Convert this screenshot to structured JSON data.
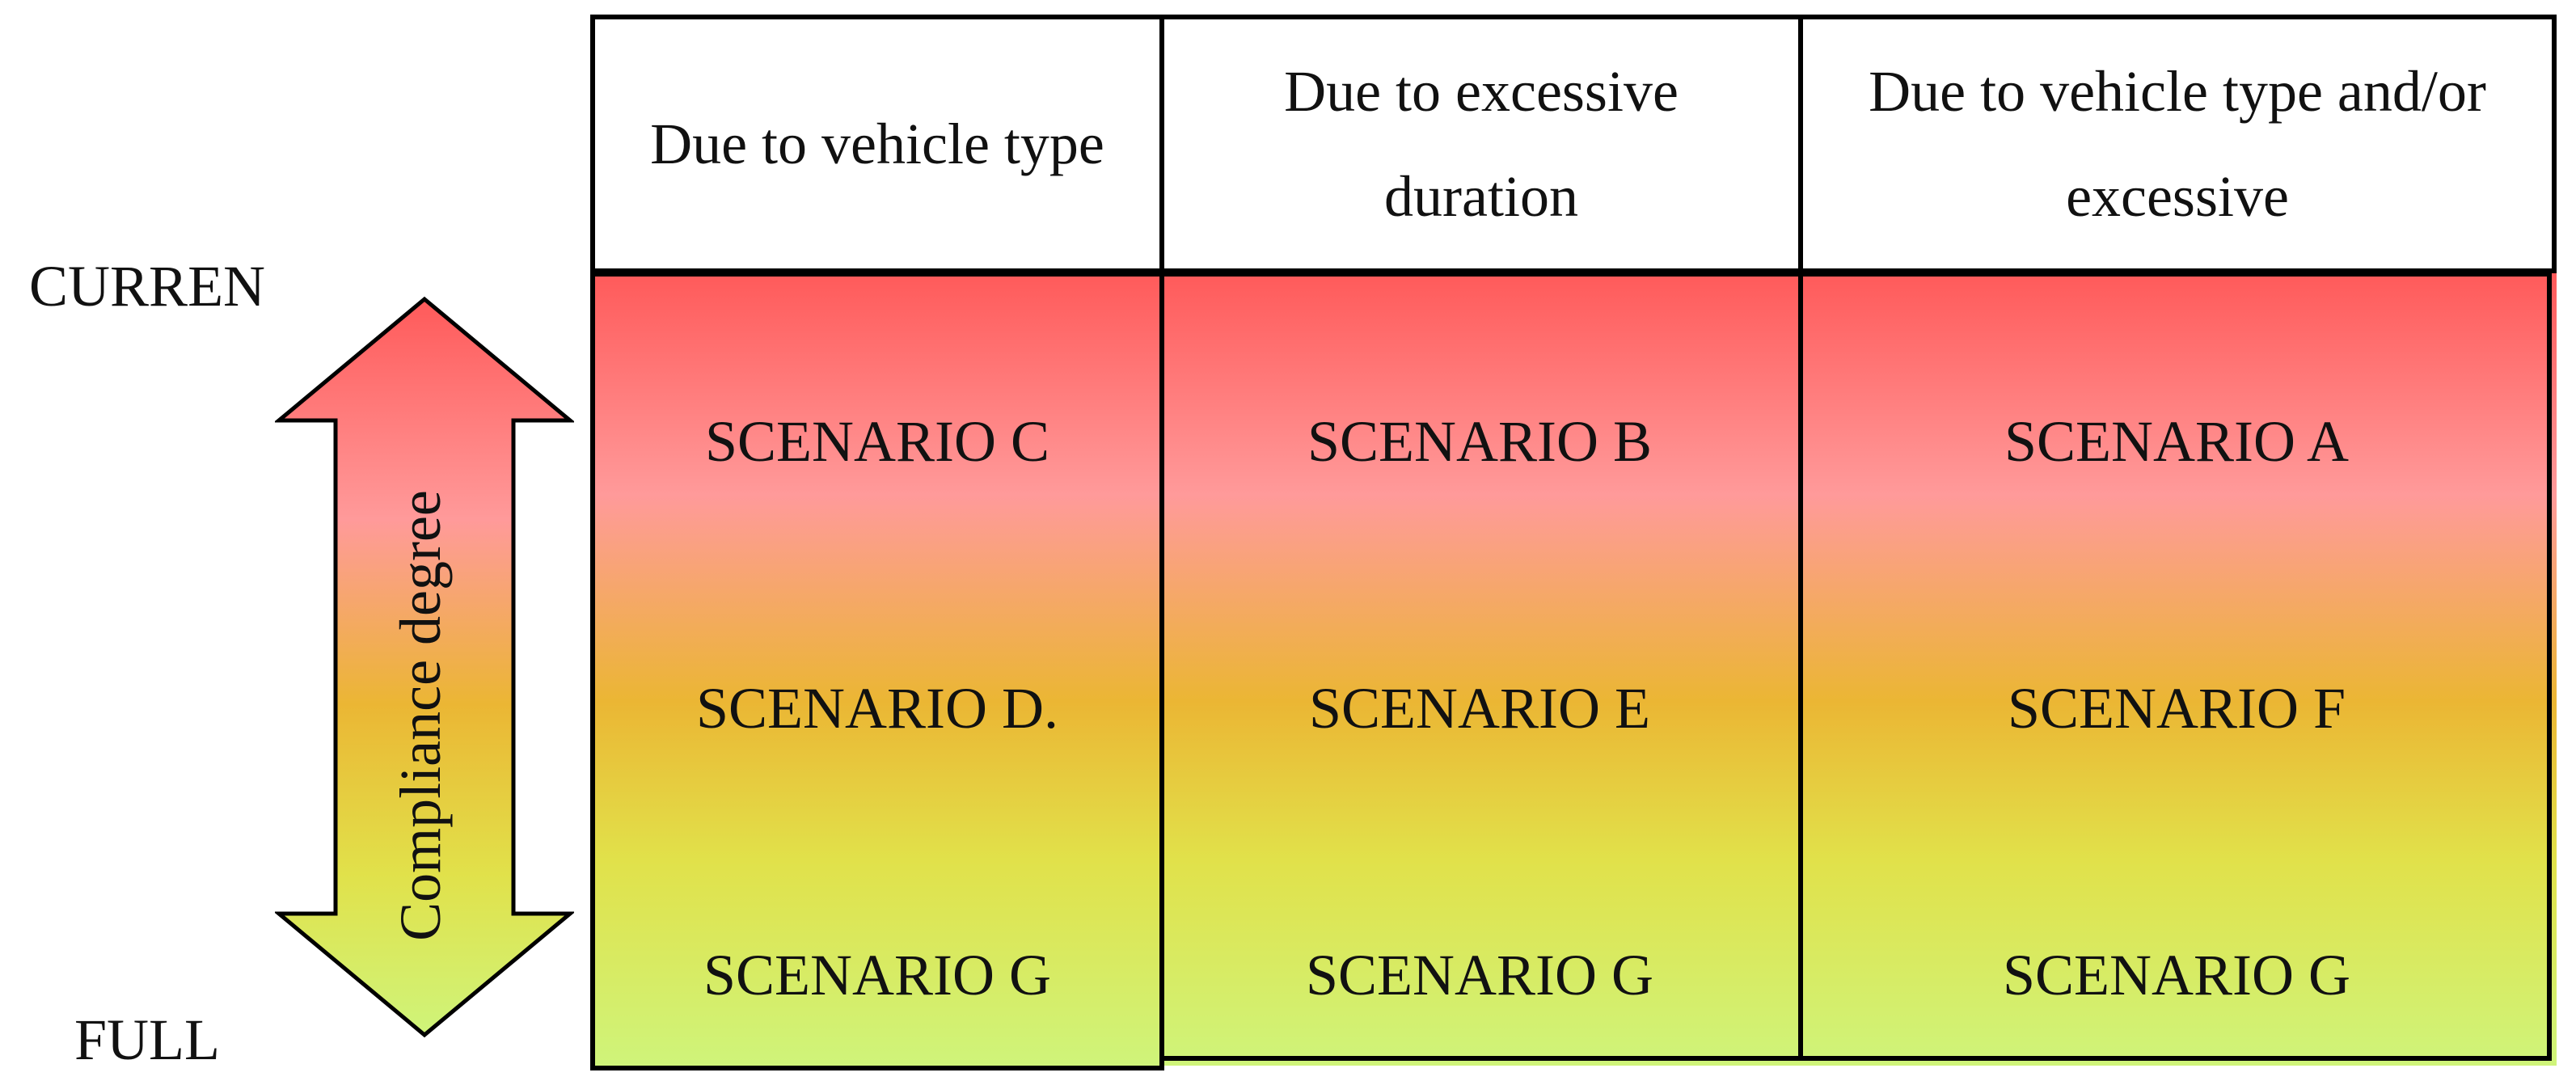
{
  "axis": {
    "top_label": "CURREN",
    "bottom_label": "FULL",
    "arrow_label": "Compliance degree"
  },
  "columns": [
    "Due to vehicle type",
    "Due to excessive duration",
    "Due to vehicle type and/or excessive"
  ],
  "rows": [
    [
      "SCENARIO C",
      "SCENARIO B",
      "SCENARIO A"
    ],
    [
      "SCENARIO D.",
      "SCENARIO E",
      "SCENARIO F"
    ],
    [
      "SCENARIO G",
      "SCENARIO G",
      "SCENARIO G"
    ]
  ],
  "colors": {
    "top": "#ff5a5a",
    "pink": "#ff9a9a",
    "orange": "#ebb634",
    "yellow": "#e1e14a",
    "green": "#cff47a"
  }
}
